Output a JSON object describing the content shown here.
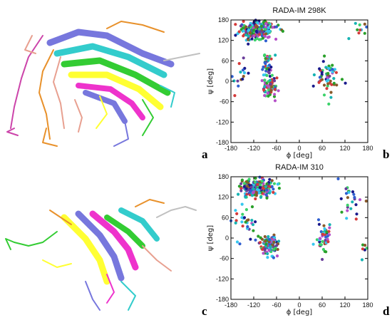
{
  "figure": {
    "panel_labels": {
      "a": "a",
      "b": "b",
      "c": "c",
      "d": "d"
    },
    "structure_colors": [
      "#e8912b",
      "#7777dd",
      "#33cccc",
      "#ffff33",
      "#33cc33",
      "#ee33cc",
      "#e8a090",
      "#cc44aa",
      "#c0c0c0"
    ]
  },
  "chart_data": [
    {
      "type": "scatter",
      "title": "RADA-IM 298K",
      "xlabel": "ϕ [deg]",
      "ylabel": "ψ [deg]",
      "xlim": [
        -180,
        180
      ],
      "ylim": [
        -180,
        180
      ],
      "xticks": [
        -180,
        -120,
        -60,
        0,
        60,
        120,
        180
      ],
      "yticks": [
        -180,
        -120,
        -60,
        0,
        60,
        120,
        180
      ],
      "grid": false,
      "marker_colors": [
        "#1a1a8c",
        "#2f5fd0",
        "#36c7ef",
        "#3bd26a",
        "#2aa02a",
        "#8a5a2b",
        "#6a3d9a",
        "#d43a3a",
        "#17b3b3",
        "#b54fc9"
      ],
      "clusters": [
        {
          "x_center": -110,
          "y_center": 150,
          "x_spread": 40,
          "y_spread": 20,
          "count": 220
        },
        {
          "x_center": -75,
          "y_center": -25,
          "x_spread": 15,
          "y_spread": 25,
          "count": 70
        },
        {
          "x_center": -85,
          "y_center": 40,
          "x_spread": 12,
          "y_spread": 40,
          "count": 40
        },
        {
          "x_center": 75,
          "y_center": 10,
          "x_spread": 25,
          "y_spread": 45,
          "count": 55
        },
        {
          "x_center": -150,
          "y_center": 20,
          "x_spread": 20,
          "y_spread": 50,
          "count": 15
        },
        {
          "x_center": 150,
          "y_center": 150,
          "x_spread": 25,
          "y_spread": 20,
          "count": 10
        }
      ]
    },
    {
      "type": "scatter",
      "title": "RADA-IM 310",
      "xlabel": "ϕ [deg]",
      "ylabel": "ψ [deg]",
      "xlim": [
        -180,
        180
      ],
      "ylim": [
        -180,
        180
      ],
      "xticks": [
        -180,
        -120,
        -60,
        0,
        60,
        120,
        180
      ],
      "yticks": [
        -180,
        -120,
        -60,
        0,
        60,
        120,
        180
      ],
      "grid": false,
      "marker_colors": [
        "#1a1a8c",
        "#2f5fd0",
        "#36c7ef",
        "#3bd26a",
        "#2aa02a",
        "#8a5a2b",
        "#6a3d9a",
        "#d43a3a",
        "#17b3b3",
        "#b54fc9"
      ],
      "clusters": [
        {
          "x_center": -110,
          "y_center": 145,
          "x_spread": 40,
          "y_spread": 22,
          "count": 240
        },
        {
          "x_center": -80,
          "y_center": -20,
          "x_spread": 18,
          "y_spread": 25,
          "count": 110
        },
        {
          "x_center": -140,
          "y_center": 40,
          "x_spread": 25,
          "y_spread": 45,
          "count": 30
        },
        {
          "x_center": 65,
          "y_center": 0,
          "x_spread": 15,
          "y_spread": 40,
          "count": 45
        },
        {
          "x_center": 140,
          "y_center": 100,
          "x_spread": 30,
          "y_spread": 50,
          "count": 25
        },
        {
          "x_center": 170,
          "y_center": -30,
          "x_spread": 10,
          "y_spread": 15,
          "count": 6
        }
      ]
    }
  ]
}
